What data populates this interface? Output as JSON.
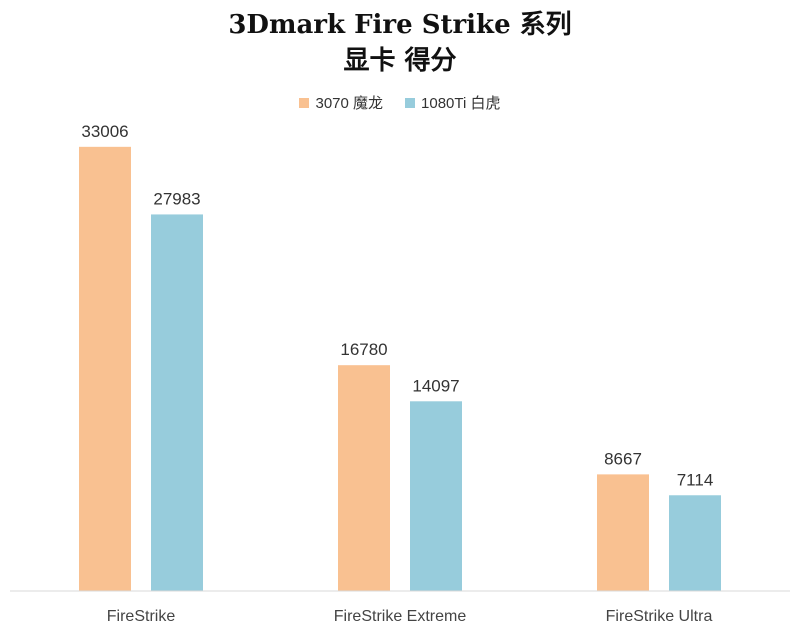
{
  "chart_data": {
    "type": "bar",
    "title": "3Dmark Fire Strike 系列",
    "subtitle": "显卡 得分",
    "categories": [
      "FireStrike",
      "FireStrike Extreme",
      "FireStrike Ultra"
    ],
    "series": [
      {
        "name": "3070 魔龙",
        "color": "#F9C191",
        "values": [
          33006,
          16780,
          8667
        ]
      },
      {
        "name": "1080Ti 白虎",
        "color": "#97CCDC",
        "values": [
          27983,
          14097,
          7114
        ]
      }
    ],
    "ylim": [
      0,
      35000
    ],
    "grid": false,
    "legend_position": "top-center",
    "axis_color": "#D9D9D9"
  }
}
